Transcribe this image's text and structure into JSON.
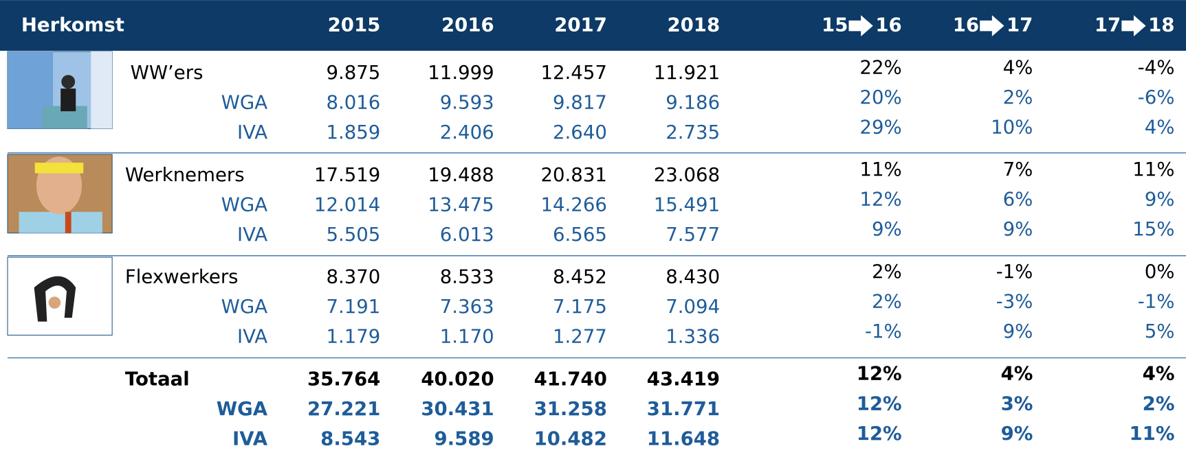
{
  "header": {
    "title": "Herkomst",
    "years": [
      "2015",
      "2016",
      "2017",
      "2018"
    ],
    "changes": [
      {
        "from": "15",
        "to": "16"
      },
      {
        "from": "16",
        "to": "17"
      },
      {
        "from": "17",
        "to": "18"
      }
    ]
  },
  "sections": [
    {
      "rows": [
        {
          "label": "WW’ers",
          "values": [
            "9.875",
            "11.999",
            "12.457",
            "11.921"
          ],
          "changes": [
            "22%",
            "4%",
            "-4%"
          ]
        },
        {
          "label": "WGA",
          "values": [
            "8.016",
            "9.593",
            "9.817",
            "9.186"
          ],
          "changes": [
            "20%",
            "2%",
            "-6%"
          ]
        },
        {
          "label": "IVA",
          "values": [
            "1.859",
            "2.406",
            "2.640",
            "2.735"
          ],
          "changes": [
            "29%",
            "10%",
            "4%"
          ]
        }
      ]
    },
    {
      "rows": [
        {
          "label": "Werknemers",
          "values": [
            "17.519",
            "19.488",
            "20.831",
            "23.068"
          ],
          "changes": [
            "11%",
            "7%",
            "11%"
          ]
        },
        {
          "label": "WGA",
          "values": [
            "12.014",
            "13.475",
            "14.266",
            "15.491"
          ],
          "changes": [
            "12%",
            "6%",
            "9%"
          ]
        },
        {
          "label": "IVA",
          "values": [
            "5.505",
            "6.013",
            "6.565",
            "7.577"
          ],
          "changes": [
            "9%",
            "9%",
            "15%"
          ]
        }
      ]
    },
    {
      "rows": [
        {
          "label": "Flexwerkers",
          "values": [
            "8.370",
            "8.533",
            "8.452",
            "8.430"
          ],
          "changes": [
            "2%",
            "-1%",
            "0%"
          ]
        },
        {
          "label": "WGA",
          "values": [
            "7.191",
            "7.363",
            "7.175",
            "7.094"
          ],
          "changes": [
            "2%",
            "-3%",
            "-1%"
          ]
        },
        {
          "label": "IVA",
          "values": [
            "1.179",
            "1.170",
            "1.277",
            "1.336"
          ],
          "changes": [
            "-1%",
            "9%",
            "5%"
          ]
        }
      ]
    },
    {
      "rows": [
        {
          "label": "Totaal",
          "values": [
            "35.764",
            "40.020",
            "41.740",
            "43.419"
          ],
          "changes": [
            "12%",
            "4%",
            "4%"
          ]
        },
        {
          "label": "WGA",
          "values": [
            "27.221",
            "30.431",
            "31.258",
            "31.771"
          ],
          "changes": [
            "12%",
            "3%",
            "2%"
          ]
        },
        {
          "label": "IVA",
          "values": [
            "8.543",
            "9.589",
            "10.482",
            "11.648"
          ],
          "changes": [
            "12%",
            "9%",
            "11%"
          ]
        }
      ]
    }
  ]
}
